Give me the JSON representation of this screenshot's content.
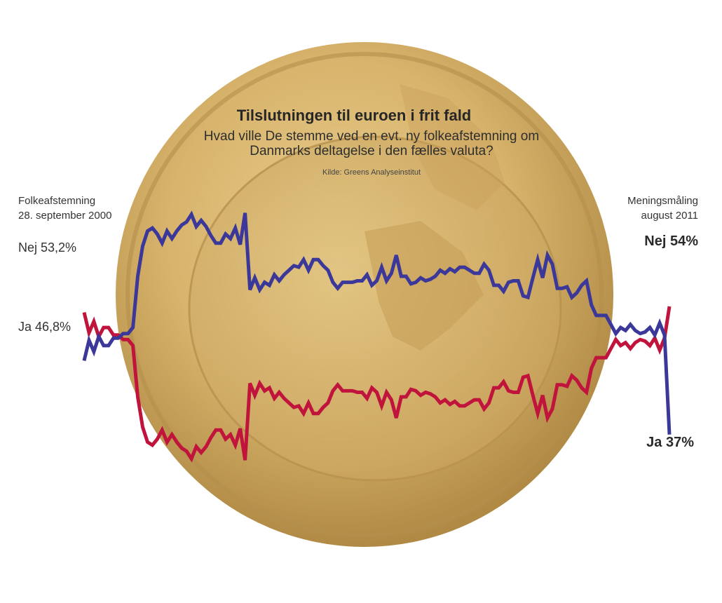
{
  "title": "Tilslutningen til euroen i frit fald",
  "subtitle": "Hvad ville De stemme ved en evt. ny folkeafstemning om Danmarks deltagelse i den fælles valuta?",
  "source": "Kilde: Greens Analyseinstitut",
  "start_note": {
    "line1": "Folkeafstemning",
    "line2": "28. september 2000"
  },
  "end_note": {
    "line1": "Meningsmåling",
    "line2": "august 2011"
  },
  "labels": {
    "start_nej": "Nej 53,2%",
    "start_ja": "Ja 46,8%",
    "end_nej": "Nej 54%",
    "end_ja": "Ja 37%"
  },
  "colors": {
    "nej": "#c0143c",
    "ja": "#3b3899",
    "coin_gold": "#d9b56a",
    "coin_rim": "#c39a52"
  },
  "chart_data": {
    "type": "line",
    "title": "Tilslutningen til euroen i frit fald",
    "subtitle": "Hvad ville De stemme ved en evt. ny folkeafstemning om Danmarks deltagelse i den fælles valuta?",
    "xlabel": "",
    "ylabel": "",
    "grid": false,
    "legend": "none",
    "x_start": "Folkeafstemning 28. september 2000",
    "x_end": "Meningsmåling august 2011",
    "ylim": [
      30,
      70
    ],
    "series": [
      {
        "name": "Nej",
        "values": [
          53.2,
          50.5,
          52,
          50,
          51.2,
          51.2,
          50.2,
          50.2,
          49.6,
          49.6,
          48.8,
          42,
          38,
          36,
          35.6,
          36.4,
          37.6,
          36,
          37,
          36,
          35.2,
          34.8,
          33.8,
          35.4,
          34.6,
          35.4,
          36.6,
          37.6,
          37.6,
          36.4,
          37,
          35.6,
          37.8,
          33.6,
          43.8,
          42.2,
          43.8,
          42.8,
          43.2,
          41.8,
          42.6,
          41.8,
          41.2,
          40.6,
          40.8,
          39.8,
          41.2,
          39.8,
          39.8,
          40.6,
          41.2,
          42.8,
          43.6,
          42.8,
          42.8,
          42.8,
          42.6,
          42.6,
          41.8,
          43.2,
          42.6,
          40.8,
          42.6,
          41.6,
          39.2,
          42,
          42,
          43,
          42.8,
          42.2,
          42.6,
          42.4,
          42,
          41.2,
          41.6,
          41,
          41.4,
          40.8,
          40.8,
          41.2,
          41.6,
          41.6,
          40.4,
          41.2,
          43.2,
          43.2,
          44,
          42.8,
          42.6,
          42.6,
          44.6,
          44.8,
          42.2,
          39.8,
          42.2,
          39.2,
          40.4,
          43.6,
          43.6,
          43.4,
          44.8,
          44.2,
          43.2,
          42.6,
          45.8,
          47.2,
          47.2,
          47.2,
          48.4,
          49.6,
          48.8,
          49.2,
          48.4,
          49.2,
          49.6,
          49.4,
          48.8,
          49.8,
          48.2,
          49.8,
          54
        ]
      },
      {
        "name": "Ja",
        "values": [
          46.8,
          49.5,
          48,
          50,
          48.8,
          48.8,
          49.8,
          49.8,
          50.4,
          50.4,
          51.2,
          58,
          62,
          64,
          64.4,
          63.6,
          62.4,
          64,
          63,
          64,
          64.8,
          65.2,
          66.2,
          64.6,
          65.4,
          64.6,
          63.4,
          62.4,
          62.4,
          63.6,
          63,
          64.4,
          62.2,
          66.4,
          56.2,
          57.8,
          56.2,
          57.2,
          56.8,
          58.2,
          57.4,
          58.2,
          58.8,
          59.4,
          59.2,
          60.2,
          58.8,
          60.2,
          60.2,
          59.4,
          58.8,
          57.2,
          56.4,
          57.2,
          57.2,
          57.2,
          57.4,
          57.4,
          58.2,
          56.8,
          57.4,
          59.2,
          57.4,
          58.4,
          60.8,
          58,
          58,
          57,
          57.2,
          57.8,
          57.4,
          57.6,
          58,
          58.8,
          58.4,
          59,
          58.6,
          59.2,
          59.2,
          58.8,
          58.4,
          58.4,
          59.6,
          58.8,
          56.8,
          56.8,
          56,
          57.2,
          57.4,
          57.4,
          55.4,
          55.2,
          57.8,
          60.2,
          57.8,
          60.8,
          59.6,
          56.4,
          56.4,
          56.6,
          55.2,
          55.8,
          56.8,
          57.4,
          54.2,
          52.8,
          52.8,
          52.8,
          51.6,
          50.4,
          51.2,
          50.8,
          51.6,
          50.8,
          50.4,
          50.6,
          51.2,
          50.2,
          51.8,
          50.2,
          37
        ]
      }
    ]
  }
}
